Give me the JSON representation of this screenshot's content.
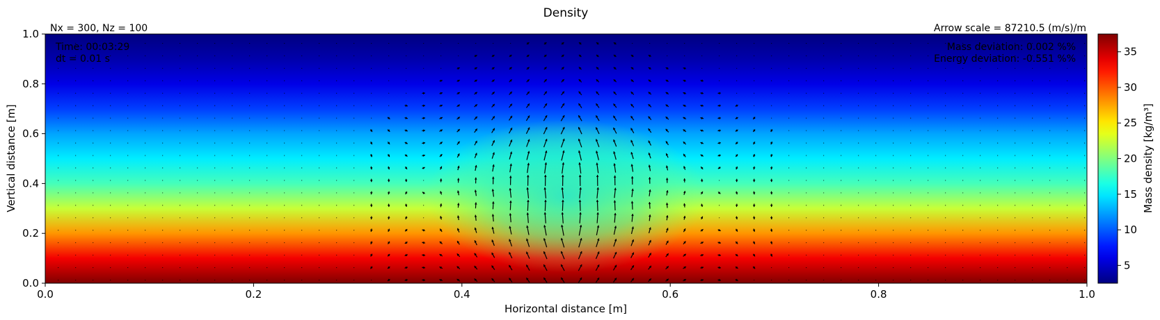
{
  "chart_data": {
    "type": "heatmap",
    "title": "Density",
    "xlabel": "Horizontal distance [m]",
    "ylabel": "Vertical distance [m]",
    "xlim": [
      0.0,
      1.0
    ],
    "ylim": [
      0.0,
      1.0
    ],
    "xticks": [
      0.0,
      0.2,
      0.4,
      0.6,
      0.8,
      1.0
    ],
    "xtick_labels": [
      "0.0",
      "0.2",
      "0.4",
      "0.6",
      "0.8",
      "1.0"
    ],
    "yticks": [
      0.0,
      0.2,
      0.4,
      0.6,
      0.8,
      1.0
    ],
    "ytick_labels": [
      "0.0",
      "0.2",
      "0.4",
      "0.6",
      "0.8",
      "1.0"
    ],
    "colormap": "jet",
    "colorbar": {
      "label": "Mass density [kg/m³]",
      "range": [
        2.5,
        37.5
      ],
      "ticks": [
        5,
        10,
        15,
        20,
        25,
        30,
        35
      ],
      "tick_labels": [
        "5",
        "10",
        "15",
        "20",
        "25",
        "30",
        "35"
      ]
    },
    "density_profile": {
      "y": [
        0.0,
        0.1,
        0.2,
        0.3,
        0.4,
        0.5,
        0.6,
        0.7,
        0.8,
        0.9,
        1.0
      ],
      "density": [
        37.5,
        33.5,
        28.0,
        22.5,
        18.0,
        15.0,
        12.5,
        9.0,
        6.0,
        4.0,
        2.5
      ]
    },
    "anomaly": {
      "x_center": 0.5,
      "y_center": 0.35,
      "peak_density": 14.5
    },
    "vector_field": {
      "type": "quiver",
      "color": "#000000",
      "x_extent": [
        0.3,
        0.7
      ]
    },
    "annotations": {
      "grid": "Nx = 300, Nz = 100",
      "arrow_scale": "Arrow scale = 87210.5 (m/s)/m",
      "time": "Time: 00:03:29",
      "dt": "dt = 0.01 s",
      "mass_deviation": "Mass deviation: 0.002 %%",
      "energy_deviation": "Energy deviation: -0.551 %%"
    },
    "grid": false
  }
}
